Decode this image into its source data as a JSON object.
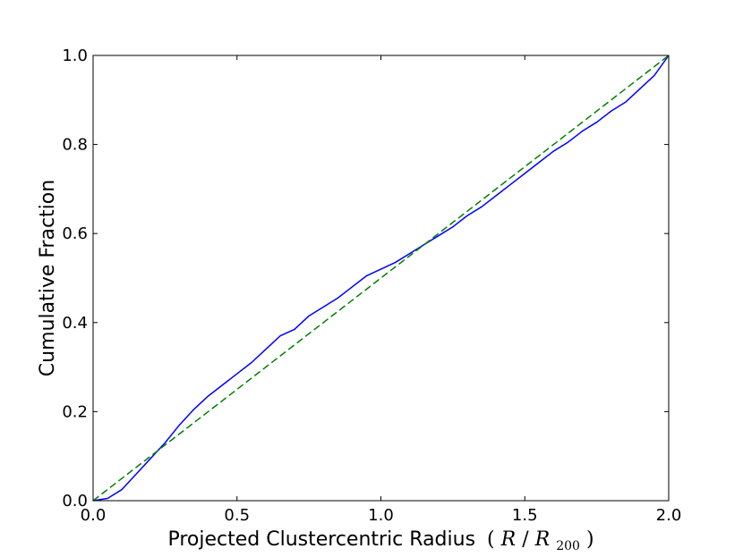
{
  "chart_data": {
    "type": "line",
    "title": "",
    "xlabel": "Projected Clustercentric Radius",
    "xlabel_math": {
      "open": "(",
      "var": "R",
      "slash": "/",
      "sub_var": "R",
      "sub": "200",
      "close": ")"
    },
    "ylabel": "Cumulative Fraction",
    "xlim": [
      0.0,
      2.0
    ],
    "ylim": [
      0.0,
      1.0
    ],
    "x_ticks": [
      "0.0",
      "0.5",
      "1.0",
      "1.5",
      "2.0"
    ],
    "y_ticks": [
      "0.0",
      "0.2",
      "0.4",
      "0.6",
      "0.8",
      "1.0"
    ],
    "grid": false,
    "legend": "none",
    "series": [
      {
        "color": "#0000ff",
        "style": "solid",
        "x": [
          0.0,
          0.05,
          0.1,
          0.15,
          0.2,
          0.25,
          0.3,
          0.35,
          0.4,
          0.45,
          0.5,
          0.55,
          0.6,
          0.65,
          0.7,
          0.75,
          0.8,
          0.85,
          0.9,
          0.95,
          1.0,
          1.05,
          1.1,
          1.15,
          1.2,
          1.25,
          1.3,
          1.35,
          1.4,
          1.45,
          1.5,
          1.55,
          1.6,
          1.65,
          1.7,
          1.75,
          1.8,
          1.85,
          1.9,
          1.95,
          2.0
        ],
        "y": [
          0.0,
          0.005,
          0.025,
          0.06,
          0.095,
          0.13,
          0.17,
          0.205,
          0.235,
          0.26,
          0.285,
          0.31,
          0.34,
          0.37,
          0.385,
          0.415,
          0.435,
          0.455,
          0.48,
          0.505,
          0.52,
          0.535,
          0.555,
          0.575,
          0.595,
          0.615,
          0.64,
          0.66,
          0.685,
          0.71,
          0.735,
          0.76,
          0.785,
          0.805,
          0.83,
          0.85,
          0.875,
          0.895,
          0.925,
          0.955,
          1.0
        ]
      },
      {
        "color": "#008000",
        "style": "dashed",
        "x": [
          0.0,
          2.0
        ],
        "y": [
          0.0,
          1.0
        ]
      }
    ]
  }
}
